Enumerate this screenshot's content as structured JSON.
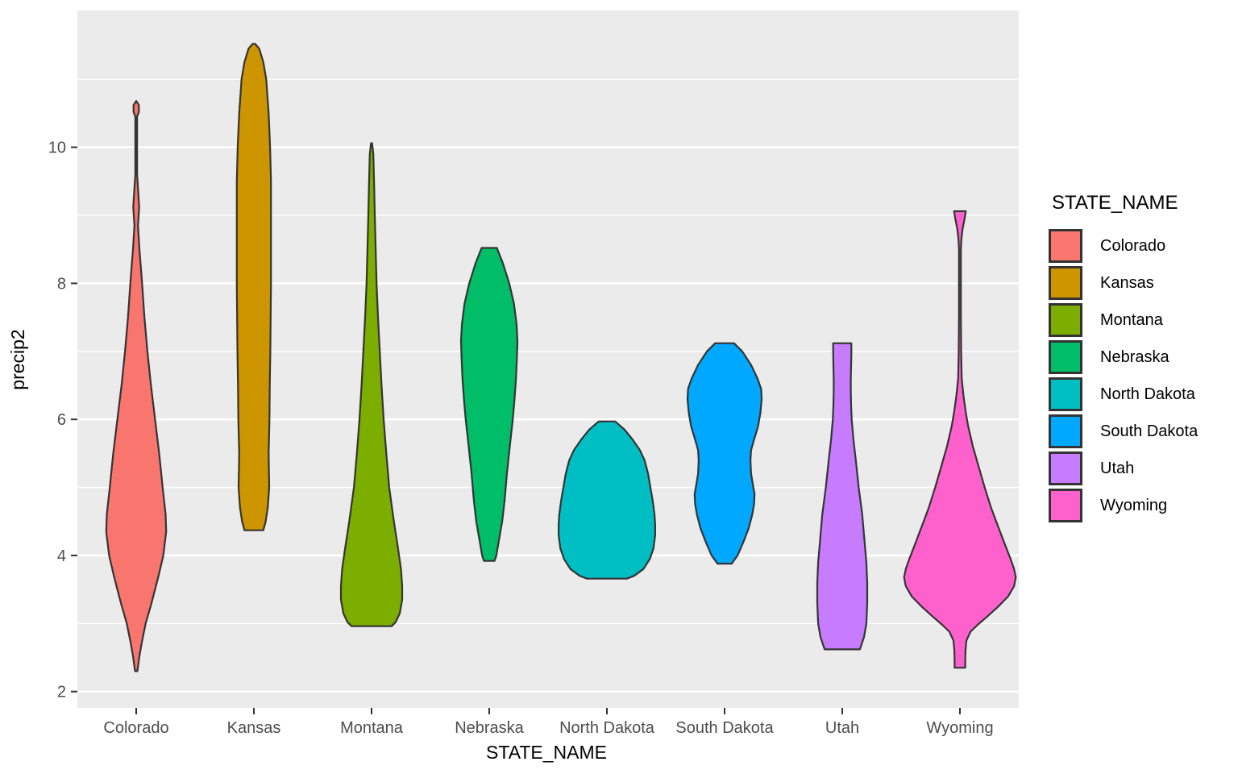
{
  "chart_data": {
    "type": "violin",
    "xlabel": "STATE_NAME",
    "ylabel": "precip2",
    "legend": {
      "title": "STATE_NAME",
      "position": "right"
    },
    "y_ticks": [
      2,
      4,
      6,
      8,
      10
    ],
    "y_minor": [
      3,
      5,
      7,
      9,
      11
    ],
    "ylim": [
      1.76,
      12.01
    ],
    "grid": true,
    "panel_bg": "#EBEBEB",
    "grid_color": "#FFFFFF",
    "outline_color": "#343434",
    "tick_text_color": "#4D4D4D",
    "series": [
      {
        "name": "Colorado",
        "color": "#F8766D",
        "range": [
          2.3,
          10.68
        ],
        "widest_at": 4.35,
        "profile": [
          [
            10.68,
            0.0
          ],
          [
            10.62,
            0.045
          ],
          [
            10.52,
            0.045
          ],
          [
            10.45,
            0.015
          ],
          [
            9.6,
            0.015
          ],
          [
            9.12,
            0.05
          ],
          [
            8.85,
            0.03
          ],
          [
            8.5,
            0.055
          ],
          [
            8.0,
            0.1
          ],
          [
            7.5,
            0.14
          ],
          [
            7.0,
            0.19
          ],
          [
            6.5,
            0.25
          ],
          [
            6.0,
            0.32
          ],
          [
            5.5,
            0.39
          ],
          [
            5.0,
            0.45
          ],
          [
            4.6,
            0.5
          ],
          [
            4.35,
            0.51
          ],
          [
            4.0,
            0.46
          ],
          [
            3.7,
            0.38
          ],
          [
            3.3,
            0.26
          ],
          [
            3.0,
            0.16
          ],
          [
            2.7,
            0.09
          ],
          [
            2.5,
            0.05
          ],
          [
            2.3,
            0.02
          ]
        ]
      },
      {
        "name": "Kansas",
        "color": "#CD9600",
        "range": [
          4.37,
          11.52
        ],
        "widest_at": 8.5,
        "profile": [
          [
            11.52,
            0.02
          ],
          [
            11.45,
            0.09
          ],
          [
            11.25,
            0.16
          ],
          [
            11.0,
            0.21
          ],
          [
            10.5,
            0.25
          ],
          [
            10.0,
            0.275
          ],
          [
            9.5,
            0.29
          ],
          [
            9.0,
            0.29
          ],
          [
            8.5,
            0.29
          ],
          [
            8.0,
            0.29
          ],
          [
            7.5,
            0.285
          ],
          [
            7.0,
            0.28
          ],
          [
            6.5,
            0.27
          ],
          [
            6.0,
            0.265
          ],
          [
            5.5,
            0.25
          ],
          [
            5.0,
            0.26
          ],
          [
            4.7,
            0.235
          ],
          [
            4.5,
            0.2
          ],
          [
            4.37,
            0.16
          ]
        ]
      },
      {
        "name": "Montana",
        "color": "#7CAE00",
        "range": [
          2.96,
          10.06
        ],
        "widest_at": 3.45,
        "profile": [
          [
            10.06,
            0.01
          ],
          [
            9.9,
            0.03
          ],
          [
            9.4,
            0.045
          ],
          [
            9.0,
            0.055
          ],
          [
            8.5,
            0.07
          ],
          [
            8.0,
            0.085
          ],
          [
            7.5,
            0.11
          ],
          [
            7.0,
            0.14
          ],
          [
            6.5,
            0.17
          ],
          [
            6.0,
            0.205
          ],
          [
            5.5,
            0.25
          ],
          [
            5.0,
            0.3
          ],
          [
            4.5,
            0.38
          ],
          [
            4.1,
            0.45
          ],
          [
            3.8,
            0.5
          ],
          [
            3.55,
            0.52
          ],
          [
            3.35,
            0.52
          ],
          [
            3.15,
            0.48
          ],
          [
            3.02,
            0.41
          ],
          [
            2.96,
            0.34
          ]
        ]
      },
      {
        "name": "Nebraska",
        "color": "#00BE67",
        "range": [
          3.92,
          8.52
        ],
        "widest_at": 7.15,
        "profile": [
          [
            8.52,
            0.13
          ],
          [
            8.3,
            0.23
          ],
          [
            8.0,
            0.34
          ],
          [
            7.7,
            0.42
          ],
          [
            7.4,
            0.465
          ],
          [
            7.15,
            0.48
          ],
          [
            6.9,
            0.47
          ],
          [
            6.6,
            0.455
          ],
          [
            6.3,
            0.43
          ],
          [
            6.0,
            0.4
          ],
          [
            5.6,
            0.35
          ],
          [
            5.2,
            0.3
          ],
          [
            4.8,
            0.26
          ],
          [
            4.5,
            0.22
          ],
          [
            4.2,
            0.16
          ],
          [
            4.0,
            0.12
          ],
          [
            3.92,
            0.09
          ]
        ]
      },
      {
        "name": "North Dakota",
        "color": "#00BFC4",
        "range": [
          3.66,
          5.97
        ],
        "widest_at": 4.4,
        "profile": [
          [
            5.97,
            0.14
          ],
          [
            5.85,
            0.3
          ],
          [
            5.7,
            0.44
          ],
          [
            5.55,
            0.56
          ],
          [
            5.4,
            0.64
          ],
          [
            5.2,
            0.7
          ],
          [
            5.0,
            0.74
          ],
          [
            4.8,
            0.78
          ],
          [
            4.6,
            0.81
          ],
          [
            4.45,
            0.82
          ],
          [
            4.3,
            0.82
          ],
          [
            4.1,
            0.79
          ],
          [
            3.95,
            0.73
          ],
          [
            3.8,
            0.62
          ],
          [
            3.7,
            0.46
          ],
          [
            3.66,
            0.34
          ]
        ]
      },
      {
        "name": "South Dakota",
        "color": "#00A9FF",
        "range": [
          3.88,
          7.12
        ],
        "widest_at": 6.3,
        "profile": [
          [
            7.12,
            0.16
          ],
          [
            7.0,
            0.3
          ],
          [
            6.8,
            0.45
          ],
          [
            6.6,
            0.56
          ],
          [
            6.45,
            0.62
          ],
          [
            6.3,
            0.63
          ],
          [
            6.1,
            0.61
          ],
          [
            5.9,
            0.57
          ],
          [
            5.7,
            0.5
          ],
          [
            5.55,
            0.45
          ],
          [
            5.4,
            0.44
          ],
          [
            5.2,
            0.45
          ],
          [
            5.05,
            0.48
          ],
          [
            4.9,
            0.51
          ],
          [
            4.75,
            0.5
          ],
          [
            4.6,
            0.47
          ],
          [
            4.4,
            0.41
          ],
          [
            4.2,
            0.32
          ],
          [
            4.0,
            0.22
          ],
          [
            3.88,
            0.12
          ]
        ]
      },
      {
        "name": "Utah",
        "color": "#C77CFF",
        "range": [
          2.62,
          7.12
        ],
        "widest_at": 3.45,
        "profile": [
          [
            7.12,
            0.155
          ],
          [
            7.0,
            0.155
          ],
          [
            6.8,
            0.15
          ],
          [
            6.6,
            0.145
          ],
          [
            6.4,
            0.145
          ],
          [
            6.2,
            0.15
          ],
          [
            6.0,
            0.16
          ],
          [
            5.7,
            0.19
          ],
          [
            5.4,
            0.23
          ],
          [
            5.0,
            0.28
          ],
          [
            4.6,
            0.34
          ],
          [
            4.2,
            0.38
          ],
          [
            3.9,
            0.41
          ],
          [
            3.6,
            0.425
          ],
          [
            3.3,
            0.425
          ],
          [
            3.0,
            0.41
          ],
          [
            2.8,
            0.37
          ],
          [
            2.62,
            0.3
          ]
        ]
      },
      {
        "name": "Wyoming",
        "color": "#FF61CC",
        "range": [
          2.35,
          9.06
        ],
        "widest_at": 3.68,
        "profile": [
          [
            9.06,
            0.1
          ],
          [
            8.95,
            0.08
          ],
          [
            8.8,
            0.045
          ],
          [
            8.65,
            0.025
          ],
          [
            8.5,
            0.016
          ],
          [
            8.0,
            0.016
          ],
          [
            7.5,
            0.016
          ],
          [
            7.0,
            0.02
          ],
          [
            6.6,
            0.03
          ],
          [
            6.35,
            0.06
          ],
          [
            6.1,
            0.1
          ],
          [
            5.9,
            0.14
          ],
          [
            5.6,
            0.22
          ],
          [
            5.3,
            0.32
          ],
          [
            5.0,
            0.42
          ],
          [
            4.7,
            0.53
          ],
          [
            4.4,
            0.66
          ],
          [
            4.15,
            0.77
          ],
          [
            3.95,
            0.86
          ],
          [
            3.8,
            0.92
          ],
          [
            3.68,
            0.95
          ],
          [
            3.55,
            0.92
          ],
          [
            3.4,
            0.82
          ],
          [
            3.25,
            0.65
          ],
          [
            3.1,
            0.46
          ],
          [
            2.98,
            0.3
          ],
          [
            2.88,
            0.18
          ],
          [
            2.75,
            0.11
          ],
          [
            2.6,
            0.095
          ],
          [
            2.45,
            0.09
          ],
          [
            2.35,
            0.09
          ]
        ]
      }
    ]
  }
}
